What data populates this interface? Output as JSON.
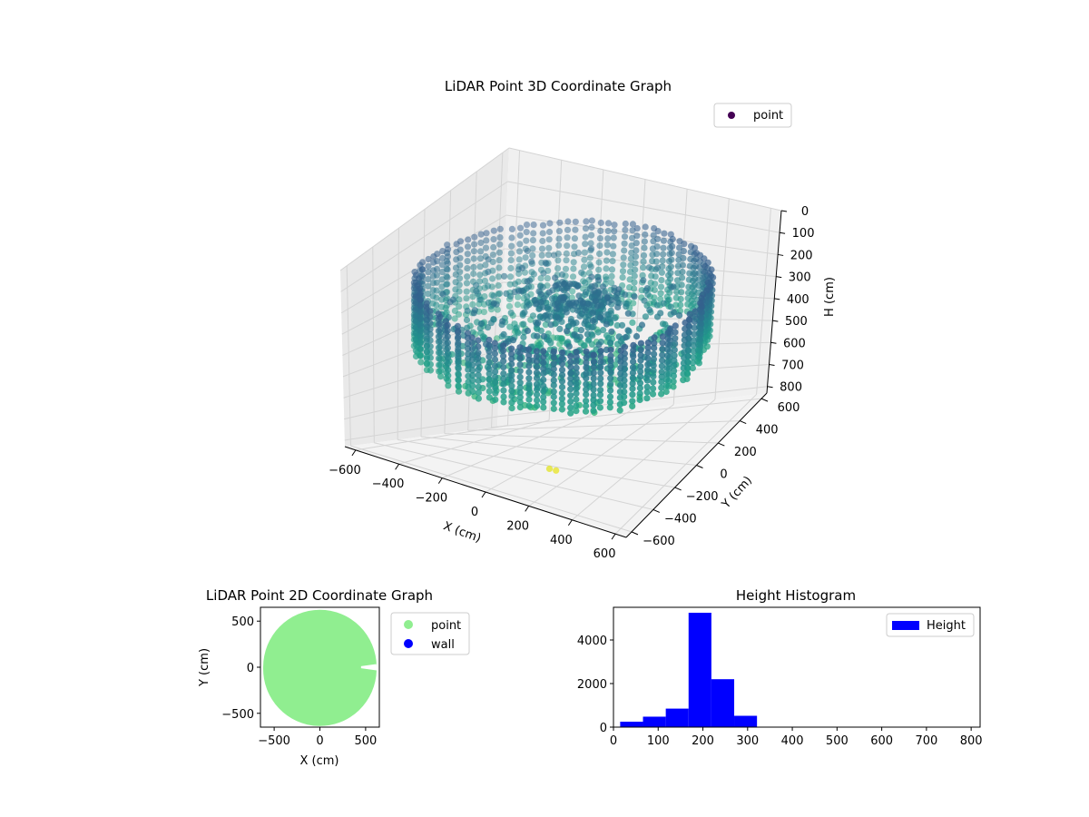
{
  "chart_data": [
    {
      "type": "scatter",
      "projection": "3d",
      "title": "LiDAR Point 3D Coordinate Graph",
      "xlabel": "X (cm)",
      "ylabel": "Y (cm)",
      "zlabel": "H (cm)",
      "xlim": [
        -650,
        650
      ],
      "ylim": [
        -650,
        650
      ],
      "zlim": [
        0,
        830
      ],
      "z_axis_inverted": true,
      "xticks": [
        "−600",
        "−400",
        "−200",
        "0",
        "200",
        "400",
        "600"
      ],
      "yticks": [
        "−600",
        "−400",
        "−200",
        "0",
        "200",
        "400",
        "600"
      ],
      "zticks": [
        "0",
        "100",
        "200",
        "300",
        "400",
        "500",
        "600",
        "700",
        "800"
      ],
      "legend_position": "upper-right",
      "colormap": "viridis",
      "grid": true,
      "series": [
        {
          "name": "point",
          "color": "#440154"
        }
      ],
      "point_structure": {
        "outer_wall_radius_cm": 600,
        "outer_wall_height_range_cm": [
          150,
          430
        ],
        "inner_clutter_height_range_cm": [
          200,
          500
        ],
        "stray_points_cm": [
          [
            130,
            -330,
            790
          ],
          [
            150,
            -310,
            800
          ]
        ]
      }
    },
    {
      "type": "scatter",
      "title": "LiDAR Point 2D Coordinate Graph",
      "xlabel": "X (cm)",
      "ylabel": "Y (cm)",
      "xlim": [
        -650,
        650
      ],
      "ylim": [
        -650,
        650
      ],
      "xticks": [
        "−500",
        "0",
        "500"
      ],
      "yticks": [
        "500",
        "0",
        "−500"
      ],
      "legend_position": "outside-right",
      "series": [
        {
          "name": "point",
          "color": "#90ee90"
        },
        {
          "name": "wall",
          "color": "#0000ff"
        }
      ],
      "disk_radius_cm": 620,
      "notch_cm": {
        "x_start": 450,
        "y_half_width": 35
      }
    },
    {
      "type": "bar",
      "title": "Height Histogram",
      "xlim": [
        0,
        820
      ],
      "ylim": [
        0,
        5500
      ],
      "xticks": [
        "0",
        "100",
        "200",
        "300",
        "400",
        "500",
        "600",
        "700",
        "800"
      ],
      "yticks": [
        "0",
        "2000",
        "4000"
      ],
      "legend_position": "upper-right",
      "series": [
        {
          "name": "Height",
          "color": "#0000ff"
        }
      ],
      "bin_edges": [
        15,
        66,
        117,
        168,
        219,
        270,
        321
      ],
      "values": [
        250,
        480,
        850,
        5250,
        2200,
        520
      ]
    }
  ]
}
